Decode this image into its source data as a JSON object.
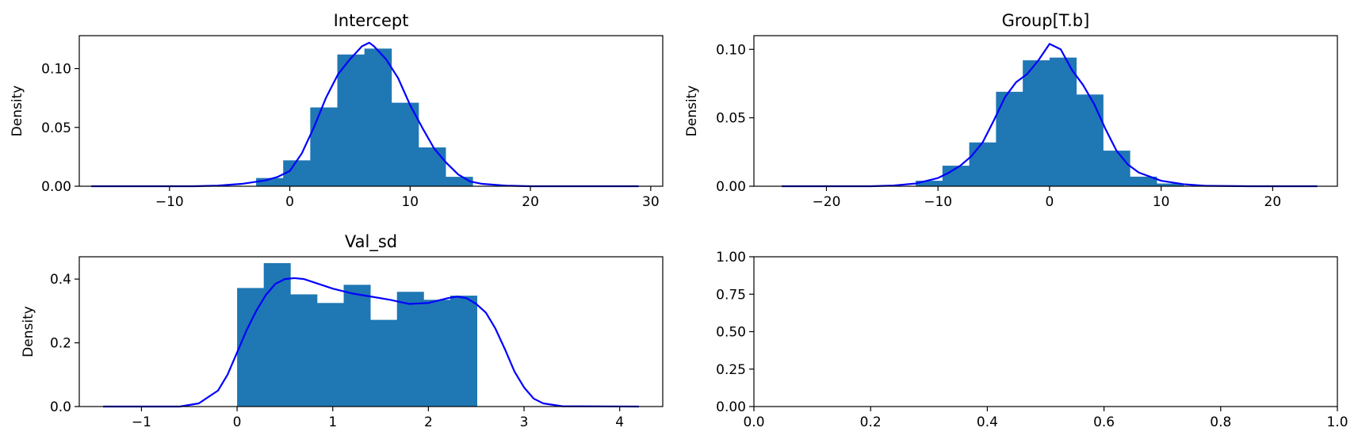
{
  "colors": {
    "hist": "#1f77b4",
    "kde": "#0000ff",
    "axis": "#000000",
    "background": "#ffffff"
  },
  "chart_data": [
    {
      "type": "bar",
      "title": "Intercept",
      "xlabel": "",
      "ylabel": "Density",
      "xlim": [
        -17.5,
        31.0
      ],
      "ylim": [
        0,
        0.128
      ],
      "xticks": [
        -10,
        0,
        10,
        20,
        30
      ],
      "xtick_labels": [
        "−10",
        "0",
        "10",
        "20",
        "30"
      ],
      "yticks": [
        0.0,
        0.05,
        0.1
      ],
      "ytick_labels": [
        "0.00",
        "0.05",
        "0.10"
      ],
      "histogram": {
        "bin_edges": [
          -2.8,
          -0.55,
          1.7,
          3.95,
          6.2,
          8.45,
          10.7,
          12.95,
          15.2
        ],
        "values": [
          0.007,
          0.022,
          0.067,
          0.112,
          0.117,
          0.071,
          0.033,
          0.008
        ]
      },
      "kde": {
        "x": [
          -16.5,
          -10,
          -8,
          -6,
          -4,
          -2,
          -1,
          0,
          1,
          2,
          3,
          4,
          5,
          6,
          6.6,
          7,
          8,
          9,
          10,
          11,
          12,
          13,
          14,
          15,
          16,
          18,
          20,
          24,
          29
        ],
        "y": [
          0.0,
          0.0,
          0.0,
          0.0005,
          0.002,
          0.005,
          0.008,
          0.013,
          0.028,
          0.05,
          0.075,
          0.095,
          0.108,
          0.119,
          0.122,
          0.119,
          0.108,
          0.092,
          0.069,
          0.05,
          0.032,
          0.02,
          0.01,
          0.004,
          0.002,
          0.0005,
          0.0,
          0.0,
          0.0
        ]
      }
    },
    {
      "type": "bar",
      "title": "Group[T.b]",
      "xlabel": "",
      "ylabel": "Density",
      "xlim": [
        -26.5,
        25.8
      ],
      "ylim": [
        0,
        0.11
      ],
      "xticks": [
        -20,
        -10,
        0,
        10,
        20
      ],
      "xtick_labels": [
        "−20",
        "−10",
        "0",
        "10",
        "20"
      ],
      "yticks": [
        0.0,
        0.05,
        0.1
      ],
      "ytick_labels": [
        "0.00",
        "0.05",
        "0.10"
      ],
      "histogram": {
        "bin_edges": [
          -12.0,
          -9.6,
          -7.2,
          -4.8,
          -2.4,
          0.0,
          2.4,
          4.8,
          7.2,
          9.6,
          12.0
        ],
        "values": [
          0.004,
          0.015,
          0.032,
          0.069,
          0.092,
          0.094,
          0.067,
          0.026,
          0.007,
          0.002
        ]
      },
      "kde": {
        "x": [
          -24,
          -16,
          -14,
          -12,
          -10,
          -9,
          -8,
          -7,
          -6,
          -5,
          -4,
          -3,
          -2,
          -1,
          0,
          1,
          2,
          3,
          4,
          5,
          6,
          7,
          8,
          10,
          12,
          14,
          18,
          24
        ],
        "y": [
          0.0,
          0.0,
          0.0005,
          0.002,
          0.006,
          0.01,
          0.015,
          0.022,
          0.032,
          0.048,
          0.065,
          0.076,
          0.082,
          0.092,
          0.104,
          0.1,
          0.085,
          0.074,
          0.06,
          0.042,
          0.026,
          0.016,
          0.01,
          0.004,
          0.0015,
          0.0003,
          0.0,
          0.0
        ]
      }
    },
    {
      "type": "bar",
      "title": "Val_sd",
      "xlabel": "",
      "ylabel": "Density",
      "xlim": [
        -1.65,
        4.45
      ],
      "ylim": [
        0,
        0.47
      ],
      "xticks": [
        -1,
        0,
        1,
        2,
        3,
        4
      ],
      "xtick_labels": [
        "−1",
        "0",
        "1",
        "2",
        "3",
        "4"
      ],
      "yticks": [
        0.0,
        0.2,
        0.4
      ],
      "ytick_labels": [
        "0.0",
        "0.2",
        "0.4"
      ],
      "histogram": {
        "bin_edges": [
          0.0,
          0.2786,
          0.5571,
          0.8357,
          1.1143,
          1.3929,
          1.6714,
          1.95,
          2.2286,
          2.5071,
          2.7857
        ],
        "values": [
          0.372,
          0.45,
          0.352,
          0.325,
          0.382,
          0.272,
          0.36,
          0.335,
          0.348,
          0.0
        ]
      },
      "kde": {
        "x": [
          -1.4,
          -0.6,
          -0.4,
          -0.2,
          -0.1,
          0.0,
          0.1,
          0.2,
          0.3,
          0.4,
          0.5,
          0.6,
          0.7,
          0.8,
          1.0,
          1.2,
          1.4,
          1.6,
          1.8,
          2.0,
          2.2,
          2.3,
          2.4,
          2.5,
          2.6,
          2.7,
          2.8,
          2.9,
          3.0,
          3.1,
          3.2,
          3.4,
          4.2
        ],
        "y": [
          0.0,
          0.0,
          0.01,
          0.05,
          0.1,
          0.17,
          0.24,
          0.3,
          0.35,
          0.385,
          0.4,
          0.403,
          0.4,
          0.39,
          0.37,
          0.355,
          0.345,
          0.335,
          0.322,
          0.325,
          0.34,
          0.345,
          0.34,
          0.322,
          0.295,
          0.245,
          0.18,
          0.11,
          0.06,
          0.025,
          0.01,
          0.001,
          0.0
        ]
      }
    },
    {
      "type": "empty",
      "title": "",
      "xlabel": "",
      "ylabel": "",
      "xlim": [
        0,
        1
      ],
      "ylim": [
        0,
        1
      ],
      "xticks": [
        0,
        0.2,
        0.4,
        0.6,
        0.8,
        1.0
      ],
      "xtick_labels": [
        "0.0",
        "0.2",
        "0.4",
        "0.6",
        "0.8",
        "1.0"
      ],
      "yticks": [
        0,
        0.25,
        0.5,
        0.75,
        1.0
      ],
      "ytick_labels": [
        "0.00",
        "0.25",
        "0.50",
        "0.75",
        "1.00"
      ]
    }
  ]
}
